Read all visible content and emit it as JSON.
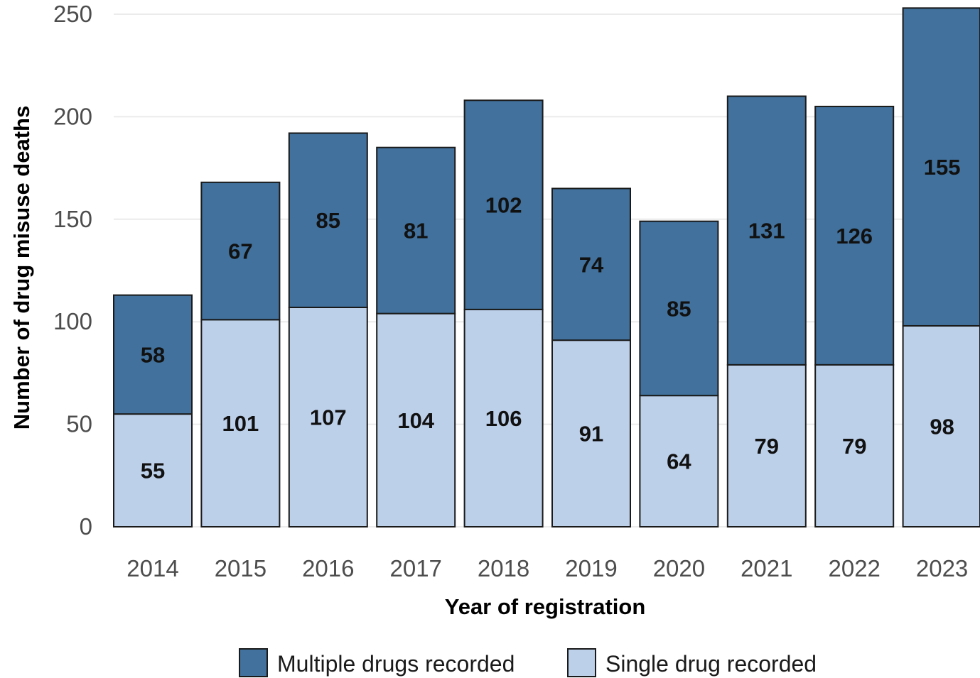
{
  "chart_data": {
    "type": "bar",
    "stacked": true,
    "xlabel": "Year of registration",
    "ylabel": "Number of drug misuse deaths",
    "categories": [
      "2014",
      "2015",
      "2016",
      "2017",
      "2018",
      "2019",
      "2020",
      "2021",
      "2022",
      "2023"
    ],
    "ylim": [
      0,
      250
    ],
    "yticks": [
      0,
      50,
      100,
      150,
      200,
      250
    ],
    "grid": "horizontal",
    "legend_position": "bottom",
    "series": [
      {
        "name": "Single drug recorded",
        "color": "#bdd0ea",
        "values": [
          55,
          101,
          107,
          104,
          106,
          91,
          64,
          79,
          79,
          98
        ]
      },
      {
        "name": "Multiple drugs recorded",
        "color": "#41719c",
        "values": [
          58,
          67,
          85,
          81,
          102,
          74,
          85,
          131,
          126,
          155
        ]
      }
    ],
    "legend": [
      {
        "name": "Multiple drugs recorded",
        "color": "#41719c"
      },
      {
        "name": "Single drug recorded",
        "color": "#bdd0ea"
      }
    ]
  }
}
